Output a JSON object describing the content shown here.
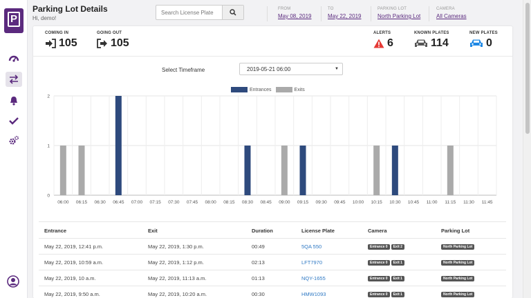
{
  "app": {
    "logo_letter": "P",
    "colors": {
      "brand": "#5b2a7e",
      "entrances": "#2e4a7d",
      "exits": "#aaaaaa",
      "alert": "#e53935",
      "new": "#1e88e5",
      "link": "#2f79c4"
    }
  },
  "sidebar": {
    "items": [
      {
        "icon": "dashboard-icon"
      },
      {
        "icon": "transfer-arrows-icon",
        "active": true
      },
      {
        "icon": "bell-icon"
      },
      {
        "icon": "check-icon"
      },
      {
        "icon": "settings-gears-icon"
      }
    ],
    "user_icon": "user-circle-icon"
  },
  "header": {
    "title": "Parking Lot Details",
    "greeting": "Hi, demo!",
    "search": {
      "placeholder": "Search License Plate",
      "icon": "search-icon"
    },
    "filters": {
      "from": {
        "label": "FROM",
        "value": "May 08, 2019"
      },
      "to": {
        "label": "TO",
        "value": "May 22, 2019"
      },
      "parking_lot": {
        "label": "PARKING LOT",
        "value": "North Parking Lot"
      },
      "camera": {
        "label": "CAMERA",
        "value": "All Cameras"
      }
    }
  },
  "stats": {
    "coming_in": {
      "label": "COMING IN",
      "value": "105",
      "icon": "sign-in-icon"
    },
    "going_out": {
      "label": "GOING OUT",
      "value": "105",
      "icon": "sign-out-icon"
    },
    "alerts": {
      "label": "ALERTS",
      "value": "6",
      "icon": "warning-triangle-icon"
    },
    "known_plates": {
      "label": "KNOWN PLATES",
      "value": "114",
      "icon": "car-icon"
    },
    "new_plates": {
      "label": "NEW PLATES",
      "value": "0",
      "icon": "car-icon"
    }
  },
  "timeframe": {
    "label": "Select Timeframe",
    "value": "2019-05-21 06:00"
  },
  "chart_data": {
    "type": "bar",
    "categories": [
      "06:00",
      "06:15",
      "06:30",
      "06:45",
      "07:00",
      "07:15",
      "07:30",
      "07:45",
      "08:00",
      "08:15",
      "08:30",
      "08:45",
      "09:00",
      "09:15",
      "09:30",
      "09:45",
      "10:00",
      "10:15",
      "10:30",
      "10:45",
      "11:00",
      "11:15",
      "11:30",
      "11:45"
    ],
    "series": [
      {
        "name": "Entrances",
        "values": [
          0,
          0,
          0,
          2,
          0,
          0,
          0,
          0,
          0,
          0,
          1,
          0,
          0,
          1,
          0,
          0,
          0,
          0,
          1,
          0,
          0,
          0,
          0,
          0
        ]
      },
      {
        "name": "Exits",
        "values": [
          1,
          1,
          0,
          0,
          0,
          0,
          0,
          0,
          0,
          0,
          0,
          0,
          1,
          0,
          0,
          0,
          0,
          1,
          0,
          0,
          0,
          1,
          0,
          0
        ]
      }
    ],
    "ylim": [
      0,
      2
    ],
    "yticks": [
      "0",
      "1",
      "2"
    ],
    "grid": true,
    "legend": "top-center"
  },
  "table": {
    "columns": [
      "Entrance",
      "Exit",
      "Duration",
      "License Plate",
      "Camera",
      "Parking Lot"
    ],
    "rows": [
      {
        "entrance": "May 22, 2019, 12:41 p.m.",
        "exit": "May 22, 2019, 1:30 p.m.",
        "duration": "00:49",
        "plate": "5QA 550",
        "cam_in": "Entrance 0",
        "cam_out": "Exit 2",
        "lot": "North Parking Lot"
      },
      {
        "entrance": "May 22, 2019, 10:59 a.m.",
        "exit": "May 22, 2019, 1:12 p.m.",
        "duration": "02:13",
        "plate": "LFT7970",
        "cam_in": "Entrance 0",
        "cam_out": "Exit 1",
        "lot": "North Parking Lot"
      },
      {
        "entrance": "May 22, 2019, 10 a.m.",
        "exit": "May 22, 2019, 11:13 a.m.",
        "duration": "01:13",
        "plate": "NQY-1655",
        "cam_in": "Entrance 0",
        "cam_out": "Exit 1",
        "lot": "North Parking Lot"
      },
      {
        "entrance": "May 22, 2019, 9:50 a.m.",
        "exit": "May 22, 2019, 10:20 a.m.",
        "duration": "00:30",
        "plate": "HMW1093",
        "cam_in": "Entrance 0",
        "cam_out": "Exit 1",
        "lot": "North Parking Lot"
      }
    ]
  }
}
